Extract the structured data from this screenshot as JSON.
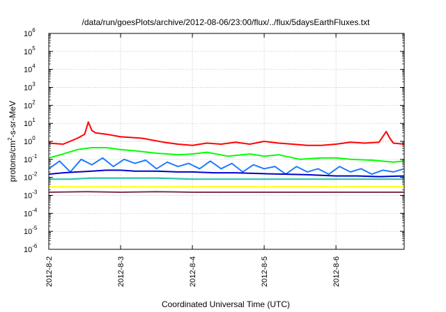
{
  "chart_data": {
    "type": "line",
    "title": "/data/run/goesPlots/archive/2012-08-06/23:00/flux/../flux/5daysEarthFluxes.txt",
    "xlabel": "Coordinated Universal Time (UTC)",
    "ylabel": {
      "base": "protons/cm",
      "sup": "2",
      "rest": "-s-sr-MeV"
    },
    "yscale": "log",
    "ylim": [
      -6,
      6
    ],
    "xlim": [
      0,
      4.95
    ],
    "grid": true,
    "x_ticks": [
      {
        "value": 0,
        "label": "2012-8-2"
      },
      {
        "value": 1,
        "label": "2012-8-3"
      },
      {
        "value": 2,
        "label": "2012-8-4"
      },
      {
        "value": 3,
        "label": "2012-8-5"
      },
      {
        "value": 4,
        "label": "2012-8-6"
      }
    ],
    "y_ticks": [
      {
        "exp": 6,
        "label": "10",
        "sup": "6"
      },
      {
        "exp": 5,
        "label": "10",
        "sup": "5"
      },
      {
        "exp": 4,
        "label": "10",
        "sup": "4"
      },
      {
        "exp": 3,
        "label": "10",
        "sup": "3"
      },
      {
        "exp": 2,
        "label": "10",
        "sup": "2"
      },
      {
        "exp": 1,
        "label": "10",
        "sup": "1"
      },
      {
        "exp": 0,
        "label": "10",
        "sup": "0"
      },
      {
        "exp": -1,
        "label": "10",
        "sup": "-1"
      },
      {
        "exp": -2,
        "label": "10",
        "sup": "-2"
      },
      {
        "exp": -3,
        "label": "10",
        "sup": "-3"
      },
      {
        "exp": -4,
        "label": "10",
        "sup": "-4"
      },
      {
        "exp": -5,
        "label": "10",
        "sup": "-5"
      },
      {
        "exp": -6,
        "label": "10",
        "sup": "-6"
      }
    ],
    "series": [
      {
        "color": "#ff0000",
        "x": [
          0,
          0.2,
          0.4,
          0.5,
          0.55,
          0.6,
          0.65,
          0.8,
          1.0,
          1.3,
          1.6,
          1.8,
          2.0,
          2.2,
          2.4,
          2.6,
          2.8,
          3.0,
          3.2,
          3.4,
          3.6,
          3.8,
          4.0,
          4.2,
          4.4,
          4.6,
          4.7,
          4.75,
          4.8,
          4.95
        ],
        "y": [
          0.8,
          0.7,
          1.5,
          2.5,
          12,
          4,
          3,
          2.5,
          1.8,
          1.5,
          0.9,
          0.7,
          0.6,
          0.8,
          0.7,
          0.9,
          0.7,
          1.0,
          0.8,
          0.7,
          0.6,
          0.6,
          0.7,
          0.9,
          0.8,
          0.9,
          3.5,
          1.5,
          0.8,
          0.7
        ]
      },
      {
        "color": "#00ff00",
        "x": [
          0,
          0.2,
          0.4,
          0.6,
          0.8,
          1.0,
          1.2,
          1.5,
          1.8,
          2.0,
          2.2,
          2.5,
          2.8,
          3.0,
          3.2,
          3.5,
          3.8,
          4.0,
          4.2,
          4.5,
          4.8,
          4.95
        ],
        "y": [
          0.12,
          0.2,
          0.35,
          0.45,
          0.45,
          0.35,
          0.3,
          0.22,
          0.18,
          0.2,
          0.25,
          0.15,
          0.2,
          0.15,
          0.18,
          0.1,
          0.12,
          0.12,
          0.1,
          0.09,
          0.07,
          0.08
        ]
      },
      {
        "color": "#1e7aff",
        "x": [
          0,
          0.15,
          0.3,
          0.45,
          0.6,
          0.75,
          0.9,
          1.05,
          1.2,
          1.35,
          1.5,
          1.65,
          1.8,
          1.95,
          2.1,
          2.25,
          2.4,
          2.55,
          2.7,
          2.85,
          3.0,
          3.15,
          3.3,
          3.45,
          3.6,
          3.75,
          3.9,
          4.05,
          4.2,
          4.35,
          4.5,
          4.65,
          4.8,
          4.95
        ],
        "y": [
          0.03,
          0.08,
          0.02,
          0.1,
          0.05,
          0.12,
          0.04,
          0.1,
          0.06,
          0.09,
          0.03,
          0.07,
          0.04,
          0.06,
          0.03,
          0.08,
          0.03,
          0.06,
          0.02,
          0.05,
          0.03,
          0.04,
          0.015,
          0.04,
          0.02,
          0.03,
          0.015,
          0.04,
          0.02,
          0.03,
          0.015,
          0.025,
          0.02,
          0.03
        ]
      },
      {
        "color": "#0000cc",
        "x": [
          0,
          0.2,
          0.4,
          0.6,
          0.8,
          1.0,
          1.2,
          1.5,
          1.8,
          2.0,
          2.3,
          2.6,
          3.0,
          3.3,
          3.6,
          4.0,
          4.3,
          4.6,
          4.95
        ],
        "y": [
          0.015,
          0.018,
          0.02,
          0.022,
          0.025,
          0.025,
          0.022,
          0.022,
          0.02,
          0.02,
          0.018,
          0.018,
          0.016,
          0.015,
          0.014,
          0.012,
          0.012,
          0.011,
          0.012
        ]
      },
      {
        "color": "#20c0a0",
        "x": [
          0,
          0.3,
          0.6,
          1.0,
          1.5,
          2.0,
          2.5,
          3.0,
          3.5,
          4.0,
          4.5,
          4.95
        ],
        "y": [
          0.008,
          0.008,
          0.009,
          0.009,
          0.009,
          0.008,
          0.008,
          0.008,
          0.008,
          0.008,
          0.008,
          0.008
        ]
      },
      {
        "color": "#ffff00",
        "x": [
          0,
          1.0,
          2.0,
          3.0,
          4.0,
          4.95
        ],
        "y": [
          0.003,
          0.003,
          0.003,
          0.003,
          0.003,
          0.003
        ]
      },
      {
        "color": "#803050",
        "x": [
          0,
          0.5,
          1.0,
          1.5,
          2.0,
          2.5,
          3.0,
          3.5,
          4.0,
          4.5,
          4.95
        ],
        "y": [
          0.0015,
          0.0016,
          0.0015,
          0.0016,
          0.0015,
          0.0015,
          0.0015,
          0.0015,
          0.0015,
          0.0015,
          0.0015
        ]
      }
    ]
  }
}
